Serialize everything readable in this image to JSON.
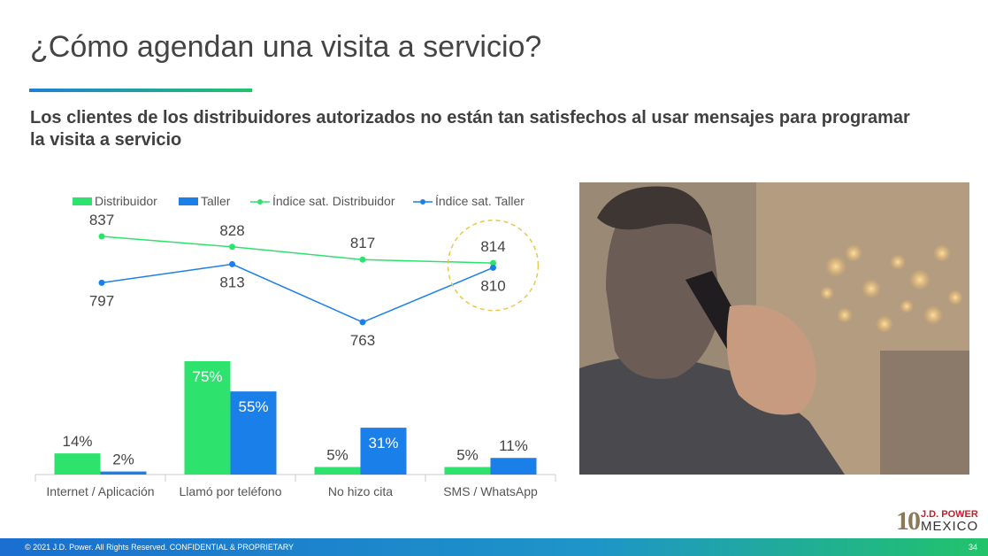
{
  "slide": {
    "title": "¿Cómo agendan una visita a servicio?",
    "subtitle": "Los clientes de los distribuidores autorizados no están tan satisfechos al usar mensajes para programar la visita a servicio"
  },
  "footer": {
    "copyright": "© 2021 J.D. Power. All Rights Reserved. CONFIDENTIAL & PROPRIETARY",
    "page_number": "34"
  },
  "logo": {
    "number": "10",
    "brand": "J.D. POWER",
    "country": "MEXICO"
  },
  "photo": {
    "icon": "man-on-phone-photo"
  },
  "colors": {
    "green": "#2ee26e",
    "blue": "#1a7fe8",
    "highlight": "#e8c84a",
    "axis": "#cccccc"
  },
  "chart_data": {
    "type": "bar",
    "categories": [
      "Internet / Aplicación",
      "Llamó por teléfono",
      "No hizo cita",
      "SMS / WhatsApp"
    ],
    "series": [
      {
        "name": "Distribuidor",
        "type": "bar",
        "values": [
          14,
          75,
          5,
          5
        ],
        "labels": [
          "14%",
          "75%",
          "5%",
          "5%"
        ]
      },
      {
        "name": "Taller",
        "type": "bar",
        "values": [
          2,
          55,
          31,
          11
        ],
        "labels": [
          "2%",
          "55%",
          "31%",
          "11%"
        ]
      },
      {
        "name": "Índice sat. Distribuidor",
        "type": "line",
        "values": [
          837,
          828,
          817,
          814
        ]
      },
      {
        "name": "Índice sat. Taller",
        "type": "line",
        "values": [
          797,
          813,
          763,
          810
        ]
      }
    ],
    "highlight_category": "SMS / WhatsApp",
    "legend_position": "top",
    "grid": false,
    "bar_ylim": [
      0,
      80
    ],
    "line_ylim": [
      740,
      850
    ]
  }
}
